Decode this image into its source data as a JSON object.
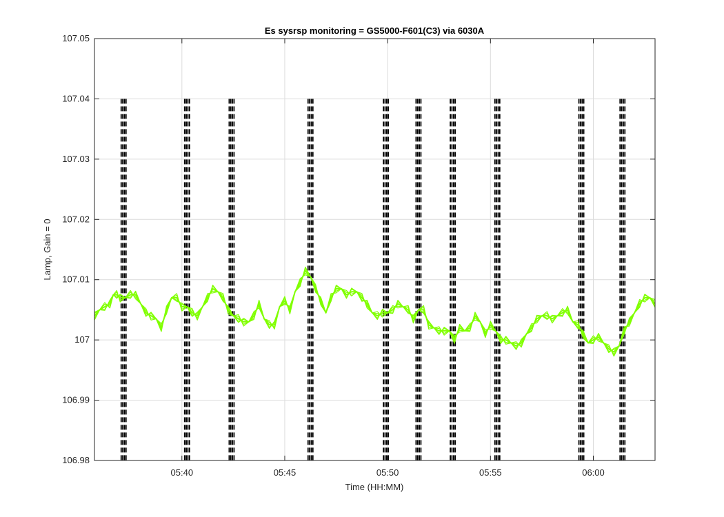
{
  "chart_data": {
    "type": "line",
    "title": "Es sysrsp monitoring = GS5000-F601(C3) via 6030A",
    "xlabel": "Time (HH:MM)",
    "ylabel": "Lamp, Gain = 0",
    "xlim": [
      "05:35:45",
      "06:03:00"
    ],
    "ylim": [
      106.98,
      107.05
    ],
    "x_ticks": [
      "05:40",
      "05:45",
      "05:50",
      "05:55",
      "06:00"
    ],
    "y_ticks": [
      "106.98",
      "106.99",
      "107",
      "107.01",
      "107.02",
      "107.03",
      "107.04",
      "107.05"
    ],
    "grid": true,
    "line_color": "#80ff00",
    "marker_color": "#000000",
    "markers": {
      "style": "dashed vertical lines",
      "y_range": [
        106.98,
        107.04
      ],
      "times": [
        "05:37:10",
        "05:40:15",
        "05:42:25",
        "05:46:15",
        "05:49:55",
        "05:51:30",
        "05:53:10",
        "05:55:20",
        "05:59:25",
        "06:01:25"
      ]
    },
    "series": [
      {
        "x": [
          "05:35:45",
          "05:36:00",
          "05:36:15",
          "05:36:30",
          "05:36:40",
          "05:36:50",
          "05:37:00",
          "05:37:15",
          "05:37:30",
          "05:37:45",
          "05:38:00",
          "05:38:15",
          "05:38:30",
          "05:38:45",
          "05:39:00",
          "05:39:15",
          "05:39:30",
          "05:39:45",
          "05:40:00",
          "05:40:15",
          "05:40:30",
          "05:40:45",
          "05:41:00",
          "05:41:15",
          "05:41:30",
          "05:41:45",
          "05:42:00",
          "05:42:15",
          "05:42:30",
          "05:42:45",
          "05:43:00",
          "05:43:15",
          "05:43:30",
          "05:43:45",
          "05:44:00",
          "05:44:15",
          "05:44:30",
          "05:44:45",
          "05:45:00",
          "05:45:15",
          "05:45:30",
          "05:45:45",
          "05:46:00",
          "05:46:15",
          "05:46:30",
          "05:46:45",
          "05:47:00",
          "05:47:15",
          "05:47:30",
          "05:47:45",
          "05:48:00",
          "05:48:15",
          "05:48:30",
          "05:48:45",
          "05:49:00",
          "05:49:15",
          "05:49:30",
          "05:49:45",
          "05:50:00",
          "05:50:15",
          "05:50:30",
          "05:50:45",
          "05:51:00",
          "05:51:15",
          "05:51:30",
          "05:51:45",
          "05:52:00",
          "05:52:15",
          "05:52:30",
          "05:52:45",
          "05:53:00",
          "05:53:15",
          "05:53:30",
          "05:53:45",
          "05:54:00",
          "05:54:15",
          "05:54:30",
          "05:54:45",
          "05:55:00",
          "05:55:15",
          "05:55:30",
          "05:55:45",
          "05:56:00",
          "05:56:15",
          "05:56:30",
          "05:56:45",
          "05:57:00",
          "05:57:15",
          "05:57:30",
          "05:57:45",
          "05:58:00",
          "05:58:15",
          "05:58:30",
          "05:58:45",
          "05:59:00",
          "05:59:15",
          "05:59:30",
          "05:59:45",
          "06:00:00",
          "06:00:15",
          "06:00:30",
          "06:00:45",
          "06:01:00",
          "06:01:15",
          "06:01:30",
          "06:01:45",
          "06:02:00",
          "06:02:15",
          "06:02:30",
          "06:02:45",
          "06:03:00"
        ],
        "y": [
          107.004,
          107.005,
          107.0055,
          107.006,
          107.0075,
          107.0075,
          107.007,
          107.007,
          107.0075,
          107.0075,
          107.006,
          107.0045,
          107.004,
          107.0035,
          107.002,
          107.005,
          107.007,
          107.007,
          107.0055,
          107.0055,
          107.0045,
          107.004,
          107.0055,
          107.007,
          107.0085,
          107.008,
          107.007,
          107.005,
          107.004,
          107.0035,
          107.003,
          107.003,
          107.004,
          107.006,
          107.0035,
          107.0025,
          107.0025,
          107.0055,
          107.0065,
          107.005,
          107.008,
          107.0095,
          107.0115,
          107.0105,
          107.0085,
          107.0065,
          107.0045,
          107.007,
          107.0085,
          107.0085,
          107.0075,
          107.008,
          107.008,
          107.007,
          107.006,
          107.0045,
          107.004,
          107.0045,
          107.0045,
          107.005,
          107.006,
          107.0055,
          107.005,
          107.0035,
          107.005,
          107.005,
          107.0025,
          107.002,
          107.0015,
          107.0015,
          107.0015,
          107.0,
          107.002,
          107.0015,
          107.002,
          107.004,
          107.003,
          107.001,
          107.0025,
          107.0015,
          107.0,
          107.0,
          106.9995,
          106.999,
          106.9995,
          107.001,
          107.002,
          107.0035,
          107.004,
          107.004,
          107.0035,
          107.004,
          107.0045,
          107.005,
          107.003,
          107.0025,
          107.001,
          106.9995,
          107.0,
          107.0005,
          106.9995,
          106.9985,
          106.998,
          106.999,
          107.0015,
          107.003,
          107.0045,
          107.006,
          107.007,
          107.007,
          107.006
        ]
      }
    ]
  }
}
